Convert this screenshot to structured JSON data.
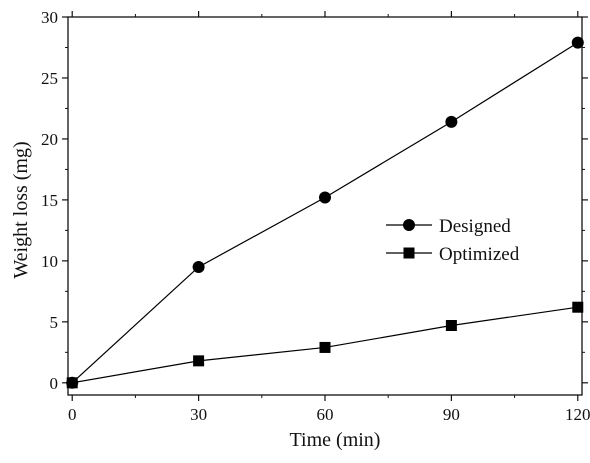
{
  "chart_data": {
    "type": "line",
    "title": "",
    "xlabel": "Time (min)",
    "ylabel": "Weight loss (mg)",
    "x": [
      0,
      30,
      60,
      90,
      120
    ],
    "xticks": [
      0,
      30,
      60,
      90,
      120
    ],
    "yticks": [
      0,
      5,
      10,
      15,
      20,
      25,
      30
    ],
    "xlim": [
      -1,
      121
    ],
    "ylim": [
      -1,
      30
    ],
    "grid": false,
    "legend_position": "center-right",
    "series": [
      {
        "name": "Designed",
        "marker": "circle",
        "color": "#000000",
        "values": [
          0,
          9.5,
          15.2,
          21.4,
          27.9
        ]
      },
      {
        "name": "Optimized",
        "marker": "square",
        "color": "#000000",
        "values": [
          0,
          1.8,
          2.9,
          4.7,
          6.2
        ]
      }
    ]
  }
}
